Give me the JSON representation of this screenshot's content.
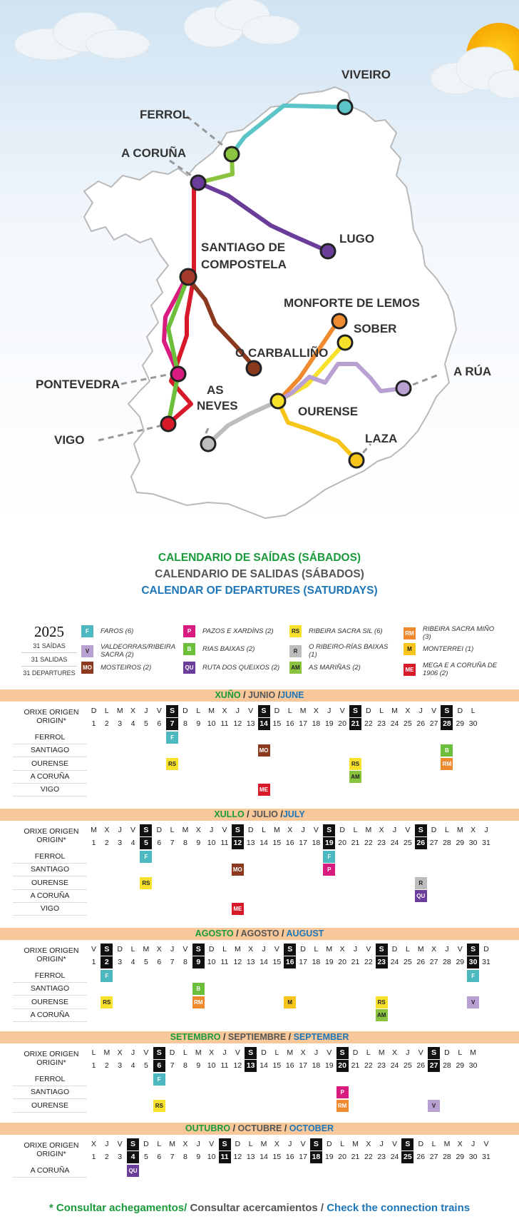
{
  "map": {
    "cities": [
      {
        "id": "viveiro",
        "name": "VIVEIRO",
        "color": "#5bc4c7"
      },
      {
        "id": "ferrol",
        "name": "FERROL",
        "color": "#8ac43f"
      },
      {
        "id": "acoruna",
        "name": "A CORUÑA",
        "color": "#6a3d9a"
      },
      {
        "id": "lugo",
        "name": "LUGO",
        "color": "#6a3d9a"
      },
      {
        "id": "santiago",
        "name": "SANTIAGO DE COMPOSTELA",
        "color": "#a33a2a"
      },
      {
        "id": "monforte",
        "name": "MONFORTE DE LEMOS",
        "color": "#f08a2e"
      },
      {
        "id": "sober",
        "name": "SOBER",
        "color": "#f7e12a"
      },
      {
        "id": "carballino",
        "name": "O CARBALLIÑO",
        "color": "#8b3a1f"
      },
      {
        "id": "arua",
        "name": "A RÚA",
        "color": "#b9a0d2"
      },
      {
        "id": "pontevedra",
        "name": "PONTEVEDRA",
        "color": "#d81b7f"
      },
      {
        "id": "asneves",
        "name": "AS NEVES",
        "color": "#bdbdbd"
      },
      {
        "id": "ourense",
        "name": "OURENSE",
        "color": "#f7e12a"
      },
      {
        "id": "vigo",
        "name": "VIGO",
        "color": "#d7192a"
      },
      {
        "id": "laza",
        "name": "LAZA",
        "color": "#f7c51a"
      }
    ]
  },
  "titles": {
    "gl": "CALENDARIO DE SAÍDAS (SÁBADOS)",
    "es": "CALENDARIO DE SALIDAS (SÁBADOS)",
    "en": "CALENDAR OF DEPARTURES (SATURDAYS)"
  },
  "year": {
    "value": "2025",
    "gl": "31 SAÍDAS",
    "es": "31 SALIDAS",
    "en": "31 DEPARTURES"
  },
  "legend": [
    {
      "code": "F",
      "label": "FAROS (6)",
      "color": "#4db8bf",
      "text": "#ffffff"
    },
    {
      "code": "V",
      "label": "VALDEORRAS/RIBEIRA SACRA (2)",
      "color": "#b9a0d2",
      "text": "#222222"
    },
    {
      "code": "MO",
      "label": "MOSTEIROS (2)",
      "color": "#8b3a1f",
      "text": "#ffffff"
    },
    {
      "code": "P",
      "label": "PAZOS E XARDÍNS (2)",
      "color": "#d81b7f",
      "text": "#ffffff"
    },
    {
      "code": "B",
      "label": "RIAS BAIXAS (2)",
      "color": "#6cbf3a",
      "text": "#ffffff"
    },
    {
      "code": "QU",
      "label": "RUTA DOS QUEIXOS (2)",
      "color": "#6a3d9a",
      "text": "#ffffff"
    },
    {
      "code": "RS",
      "label": "RIBEIRA SACRA SIL (6)",
      "color": "#f7e12a",
      "text": "#222222"
    },
    {
      "code": "R",
      "label": "O RIBEIRO-RÍAS BAIXAS (1)",
      "color": "#bdbdbd",
      "text": "#222222"
    },
    {
      "code": "AM",
      "label": "AS MARIÑAS (2)",
      "color": "#8ac43f",
      "text": "#222222"
    },
    {
      "code": "RM",
      "label": "RIBEIRA SACRA MIÑO (3)",
      "color": "#f08a2e",
      "text": "#ffffff"
    },
    {
      "code": "M",
      "label": "MONTERREI (1)",
      "color": "#f7c51a",
      "text": "#222222"
    },
    {
      "code": "ME",
      "label": "MEGA E A CORUÑA DE 1906 (2)",
      "color": "#d7192a",
      "text": "#ffffff"
    }
  ],
  "origin_label": "ORIXE  ORIGEN ORIGIN*",
  "months": [
    {
      "gl": "XUÑO",
      "es": "JUNIO",
      "en": "JUNE",
      "sep1": " / ",
      "sep2": " /",
      "weekdays": [
        "D",
        "L",
        "M",
        "X",
        "J",
        "V",
        "S",
        "D",
        "L",
        "M",
        "X",
        "J",
        "V",
        "S",
        "D",
        "L",
        "M",
        "X",
        "J",
        "V",
        "S",
        "D",
        "L",
        "M",
        "X",
        "J",
        "V",
        "S",
        "D",
        "L"
      ],
      "saturdays": [
        7,
        14,
        21,
        28
      ],
      "rows": [
        {
          "origin": "FERROL",
          "events": [
            {
              "day": 7,
              "code": "F"
            }
          ]
        },
        {
          "origin": "SANTIAGO",
          "events": [
            {
              "day": 14,
              "code": "MO"
            },
            {
              "day": 28,
              "code": "B"
            }
          ]
        },
        {
          "origin": "OURENSE",
          "events": [
            {
              "day": 7,
              "code": "RS"
            },
            {
              "day": 21,
              "code": "RS"
            },
            {
              "day": 28,
              "code": "RM"
            }
          ]
        },
        {
          "origin": "A CORUÑA",
          "events": [
            {
              "day": 21,
              "code": "AM"
            }
          ]
        },
        {
          "origin": "VIGO",
          "events": [
            {
              "day": 14,
              "code": "ME"
            }
          ]
        }
      ]
    },
    {
      "gl": "XULLO",
      "es": "JULIO",
      "en": "JULY",
      "sep1": " / ",
      "sep2": " /",
      "weekdays": [
        "M",
        "X",
        "J",
        "V",
        "S",
        "D",
        "L",
        "M",
        "X",
        "J",
        "V",
        "S",
        "D",
        "L",
        "M",
        "X",
        "J",
        "V",
        "S",
        "D",
        "L",
        "M",
        "X",
        "J",
        "V",
        "S",
        "D",
        "L",
        "M",
        "X",
        "J"
      ],
      "saturdays": [
        5,
        12,
        19,
        26
      ],
      "rows": [
        {
          "origin": "FERROL",
          "events": [
            {
              "day": 5,
              "code": "F"
            },
            {
              "day": 19,
              "code": "F"
            }
          ]
        },
        {
          "origin": "SANTIAGO",
          "events": [
            {
              "day": 12,
              "code": "MO"
            },
            {
              "day": 19,
              "code": "P"
            }
          ]
        },
        {
          "origin": "OURENSE",
          "events": [
            {
              "day": 5,
              "code": "RS"
            },
            {
              "day": 26,
              "code": "R"
            }
          ]
        },
        {
          "origin": "A CORUÑA",
          "events": [
            {
              "day": 26,
              "code": "QU"
            }
          ]
        },
        {
          "origin": "VIGO",
          "events": [
            {
              "day": 12,
              "code": "ME"
            }
          ]
        }
      ]
    },
    {
      "gl": "AGOSTO",
      "es": "AGOSTO",
      "en": "AUGUST",
      "sep1": " / ",
      "sep2": " / ",
      "weekdays": [
        "V",
        "S",
        "D",
        "L",
        "M",
        "X",
        "J",
        "V",
        "S",
        "D",
        "L",
        "M",
        "X",
        "J",
        "V",
        "S",
        "D",
        "L",
        "M",
        "X",
        "J",
        "V",
        "S",
        "D",
        "L",
        "M",
        "X",
        "J",
        "V",
        "S",
        "D"
      ],
      "saturdays": [
        2,
        9,
        16,
        23,
        30
      ],
      "rows": [
        {
          "origin": "FERROL",
          "events": [
            {
              "day": 2,
              "code": "F"
            },
            {
              "day": 30,
              "code": "F"
            }
          ]
        },
        {
          "origin": "SANTIAGO",
          "events": [
            {
              "day": 9,
              "code": "B"
            }
          ]
        },
        {
          "origin": "OURENSE",
          "events": [
            {
              "day": 2,
              "code": "RS"
            },
            {
              "day": 9,
              "code": "RM"
            },
            {
              "day": 16,
              "code": "M"
            },
            {
              "day": 23,
              "code": "RS"
            },
            {
              "day": 30,
              "code": "V"
            }
          ]
        },
        {
          "origin": "A CORUÑA",
          "events": [
            {
              "day": 23,
              "code": "AM"
            }
          ]
        }
      ]
    },
    {
      "gl": "SETEMBRO",
      "es": "SEPTIEMBRE",
      "en": "SEPTEMBER",
      "sep1": " / ",
      "sep2": " / ",
      "weekdays": [
        "L",
        "M",
        "X",
        "J",
        "V",
        "S",
        "D",
        "L",
        "M",
        "X",
        "J",
        "V",
        "S",
        "D",
        "L",
        "M",
        "X",
        "J",
        "V",
        "S",
        "D",
        "L",
        "M",
        "X",
        "J",
        "V",
        "S",
        "D",
        "L",
        "M"
      ],
      "saturdays": [
        6,
        13,
        20,
        27
      ],
      "rows": [
        {
          "origin": "FERROL",
          "events": [
            {
              "day": 6,
              "code": "F"
            }
          ]
        },
        {
          "origin": "SANTIAGO",
          "events": [
            {
              "day": 20,
              "code": "P"
            }
          ]
        },
        {
          "origin": "OURENSE",
          "events": [
            {
              "day": 6,
              "code": "RS"
            },
            {
              "day": 20,
              "code": "RM"
            },
            {
              "day": 27,
              "code": "V"
            }
          ]
        }
      ]
    },
    {
      "gl": "OUTUBRO",
      "es": "OCTUBRE",
      "en": "OCTOBER",
      "sep1": " / ",
      "sep2": " / ",
      "weekdays": [
        "X",
        "J",
        "V",
        "S",
        "D",
        "L",
        "M",
        "X",
        "J",
        "V",
        "S",
        "D",
        "L",
        "M",
        "X",
        "J",
        "V",
        "S",
        "D",
        "L",
        "M",
        "X",
        "J",
        "V",
        "S",
        "D",
        "L",
        "M",
        "X",
        "J",
        "V"
      ],
      "saturdays": [
        4,
        11,
        18,
        25
      ],
      "rows": [
        {
          "origin": "A CORUÑA",
          "events": [
            {
              "day": 4,
              "code": "QU"
            }
          ]
        }
      ]
    }
  ],
  "footer": {
    "gl": "* Consultar achegamentos/",
    "es": " Consultar acercamientos / ",
    "en": "Check the connection trains"
  }
}
